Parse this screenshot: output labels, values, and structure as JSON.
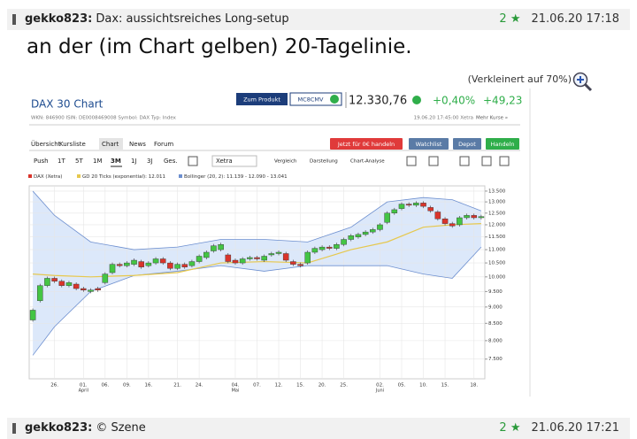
{
  "post": {
    "author": "gekko823:",
    "subject": "Dax: aussichtsreiches Long-setup",
    "rating": "2",
    "date": "21.06.20 17:18",
    "text": "an der (im Chart gelben) 20-Tagelinie.",
    "zoom": "(Verkleinert auf 70%)"
  },
  "next_post": {
    "author": "gekko823:",
    "subject": "© Szene",
    "rating": "2",
    "date": "21.06.20 17:21"
  },
  "widget": {
    "title": "DAX 30 Chart",
    "product_button": "Zum Produkt",
    "product_code": "MC8CMV",
    "price": "12.330,76",
    "change_pct": "+0,40%",
    "change_abs": "+49,23",
    "info": "WKN: 846900   ISIN: DE0008469008   Symbol: DAX   Typ: Index",
    "timestamp": "19.06.20 17:45:00 Xetra",
    "more": "Mehr Kurse »",
    "tabs": [
      "Übersicht",
      "Kursliste",
      "Chart",
      "News",
      "Forum"
    ],
    "actions": [
      "Jetzt für 0€ handeln",
      "Watchlist",
      "Depot",
      "Handeln"
    ],
    "periods": [
      "Push",
      "1T",
      "5T",
      "1M",
      "3M",
      "1J",
      "3J",
      "Ges."
    ],
    "exchange": "Xetra",
    "tools": [
      "Vergleich",
      "Darstellung",
      "Chart-Analyse"
    ]
  },
  "chart_data": {
    "type": "candlestick",
    "log_scale": true,
    "grid": true,
    "series": [
      {
        "name": "DAX (Xetra)",
        "color": "#d9342b",
        "up_color": "#44c544",
        "open": [
          8600,
          9200,
          9700,
          9950,
          9850,
          9700,
          9750,
          9600,
          9500,
          9600,
          9800,
          10150,
          10450,
          10400,
          10450,
          10550,
          10400,
          10500,
          10650,
          10500,
          10300,
          10450,
          10400,
          10550,
          10700,
          10950,
          11000,
          10800,
          10600,
          10500,
          10650,
          10700,
          10600,
          10800,
          10850,
          10850,
          10550,
          10450,
          10500,
          10900,
          11000,
          11100,
          11050,
          11200,
          11400,
          11500,
          11600,
          11700,
          11800,
          12100,
          12500,
          12700,
          12900,
          12850,
          12950,
          12750,
          12550,
          12250,
          12050,
          12000,
          12300,
          12400,
          12300
        ],
        "close": [
          8900,
          9700,
          9950,
          9850,
          9700,
          9800,
          9600,
          9550,
          9550,
          9550,
          10100,
          10450,
          10400,
          10500,
          10600,
          10350,
          10500,
          10650,
          10500,
          10300,
          10450,
          10350,
          10550,
          10750,
          10900,
          11150,
          11200,
          10550,
          10500,
          10650,
          10700,
          10650,
          10750,
          10850,
          10900,
          10600,
          10450,
          10400,
          10900,
          11050,
          11100,
          11050,
          11200,
          11400,
          11550,
          11600,
          11700,
          11800,
          12000,
          12500,
          12650,
          12900,
          12850,
          12950,
          12800,
          12600,
          12250,
          12050,
          11950,
          12300,
          12400,
          12300,
          12350
        ]
      },
      {
        "name": "GD 20 Ticks (exponential): 12.011",
        "color": "#e6c84e",
        "x": [
          0,
          3,
          8,
          14,
          20,
          26,
          32,
          38,
          44,
          49,
          54,
          58,
          62
        ],
        "values": [
          10100,
          10050,
          10000,
          10050,
          10150,
          10500,
          10550,
          10500,
          11000,
          11300,
          11900,
          12000,
          12050
        ]
      },
      {
        "name": "Bollinger (20, 2): 11.139 - 12.090 - 13.041",
        "color": "#6d8fcf",
        "fill": "#dce8fa",
        "x": [
          0,
          3,
          8,
          14,
          20,
          26,
          32,
          38,
          44,
          49,
          54,
          58,
          62
        ],
        "upper": [
          13500,
          12400,
          11300,
          11000,
          11100,
          11400,
          11400,
          11300,
          11900,
          13000,
          13200,
          13100,
          12600
        ],
        "lower": [
          7600,
          8400,
          9500,
          10050,
          10200,
          10400,
          10200,
          10400,
          10400,
          10400,
          10100,
          9950,
          11100
        ]
      }
    ],
    "ylim": [
      7000,
      13750
    ],
    "yticks": [
      {
        "value": 7500,
        "label": "7.500"
      },
      {
        "value": 8000,
        "label": "8.000"
      },
      {
        "value": 8500,
        "label": "8.500"
      },
      {
        "value": 9000,
        "label": "9.000"
      },
      {
        "value": 9500,
        "label": "9.500"
      },
      {
        "value": 10000,
        "label": "10.000"
      },
      {
        "value": 10500,
        "label": "10.500"
      },
      {
        "value": 11000,
        "label": "11.000"
      },
      {
        "value": 11500,
        "label": "11.500"
      },
      {
        "value": 12000,
        "label": "12.000"
      },
      {
        "value": 12500,
        "label": "12.500"
      },
      {
        "value": 13000,
        "label": "13.000"
      },
      {
        "value": 13500,
        "label": "13.500"
      }
    ],
    "xlim": [
      -0.5,
      62.5
    ],
    "xticks": [
      {
        "value": 3,
        "label": "26."
      },
      {
        "value": 7,
        "label": "01."
      },
      {
        "value": 10,
        "label": "06."
      },
      {
        "value": 13,
        "label": "09."
      },
      {
        "value": 16,
        "label": "16."
      },
      {
        "value": 20,
        "label": "21."
      },
      {
        "value": 23,
        "label": "24."
      },
      {
        "value": 28,
        "label": "04."
      },
      {
        "value": 31,
        "label": "07."
      },
      {
        "value": 34,
        "label": "12."
      },
      {
        "value": 37,
        "label": "15."
      },
      {
        "value": 40,
        "label": "20."
      },
      {
        "value": 43,
        "label": "25."
      },
      {
        "value": 48,
        "label": "02."
      },
      {
        "value": 51,
        "label": "05."
      },
      {
        "value": 54,
        "label": "10."
      },
      {
        "value": 57,
        "label": "15."
      },
      {
        "value": 61,
        "label": "18."
      }
    ],
    "month_labels": [
      {
        "value": 7,
        "label": "April"
      },
      {
        "value": 28,
        "label": "Mai"
      },
      {
        "value": 48,
        "label": "Juni"
      }
    ]
  }
}
